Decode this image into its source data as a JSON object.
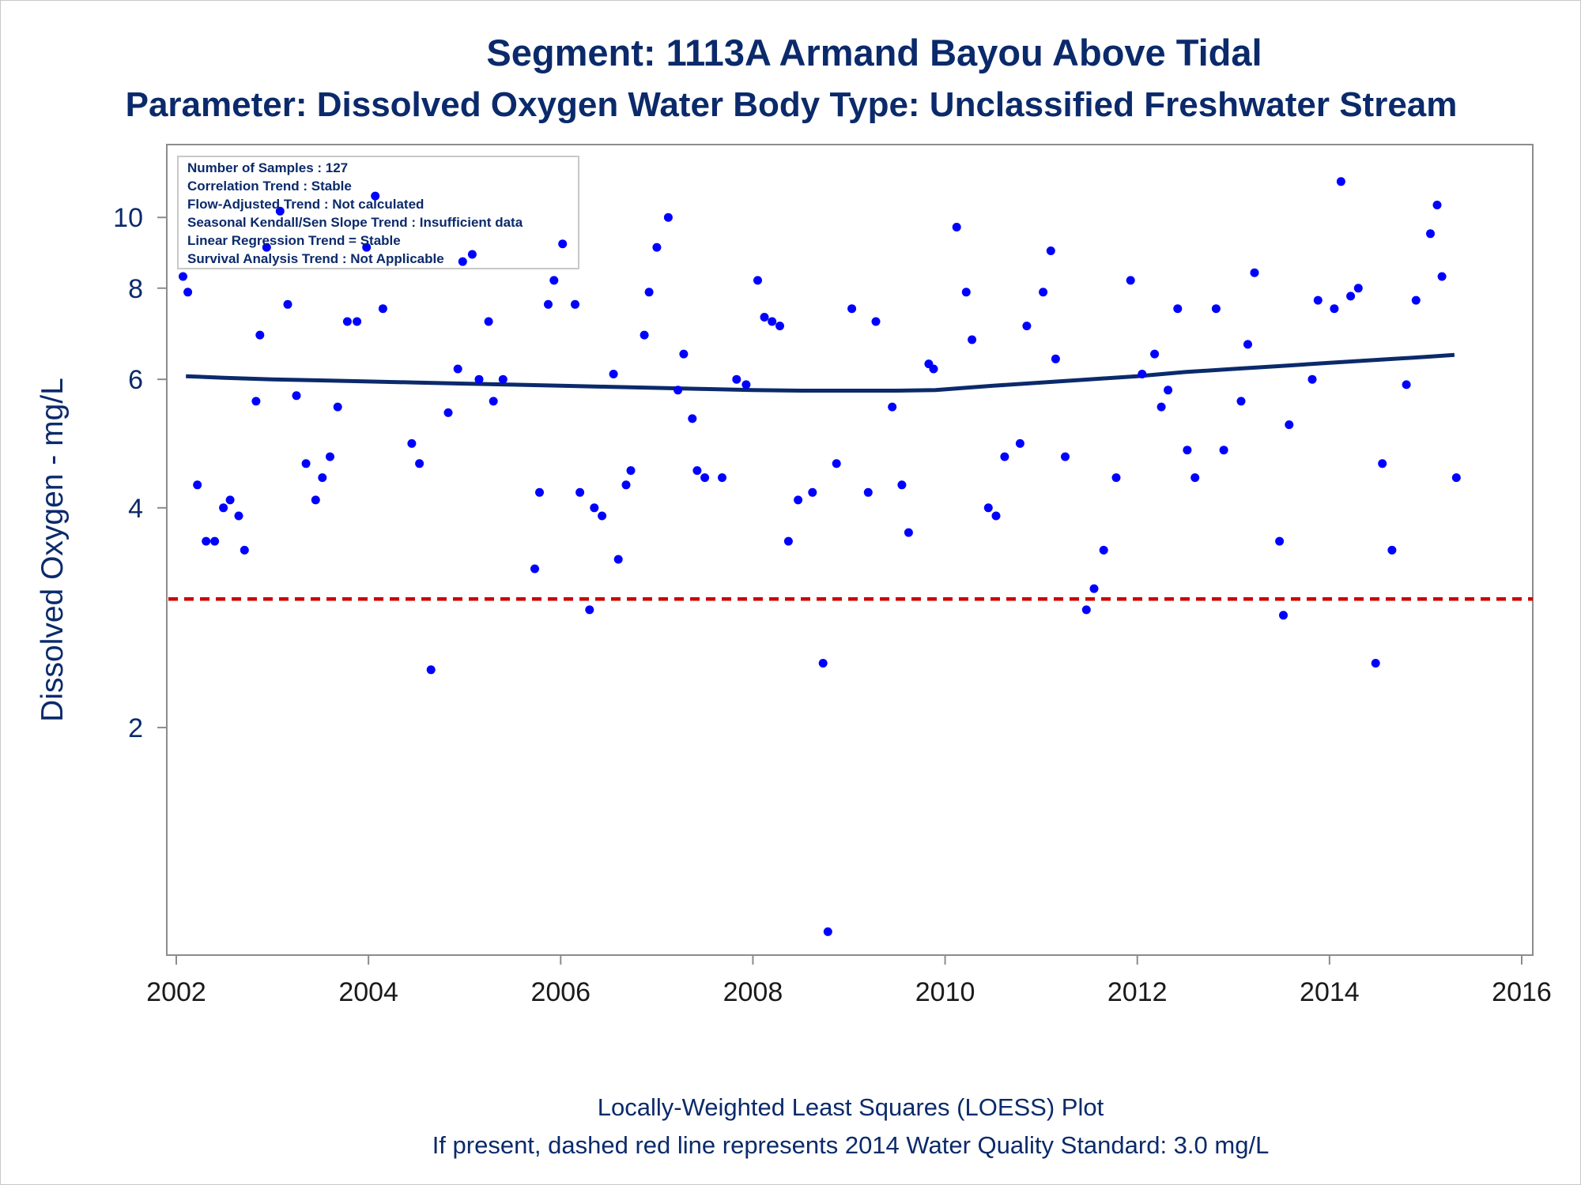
{
  "chart_data": {
    "type": "scatter",
    "title": "Segment: 1113A  Armand Bayou Above Tidal",
    "subtitle": "Parameter: Dissolved Oxygen   Water Body Type: Unclassified Freshwater Stream",
    "xlabel": "",
    "ylabel": "Dissolved Oxygen - mg/L",
    "y_scale": "log",
    "xlim": [
      2002,
      2016
    ],
    "ylim": [
      1.0,
      11.0
    ],
    "x_ticks": [
      "2002",
      "2004",
      "2006",
      "2008",
      "2010",
      "2012",
      "2014",
      "2016"
    ],
    "y_ticks": [
      "2",
      "4",
      "6",
      "8",
      "10"
    ],
    "grid": false,
    "point_color": "#0000ff",
    "loess_color": "#0b2a6b",
    "standard_color": "#cc0000",
    "standard_value": 3.0,
    "info_box": [
      "Number of Samples : 127",
      "Correlation Trend : Stable",
      "Flow-Adjusted Trend : Not calculated",
      "Seasonal Kendall/Sen Slope Trend : Insufficient data",
      "Linear Regression Trend = Stable",
      "Survival Analysis Trend : Not Applicable"
    ],
    "footnotes": [
      "Locally-Weighted Least Squares (LOESS) Plot",
      "If present, dashed red line represents 2014 Water Quality Standard: 3.0 mg/L"
    ],
    "series": [
      {
        "x": [
          2002.07,
          2002.12,
          2002.22,
          2002.31,
          2002.4,
          2002.49,
          2002.56,
          2002.65,
          2002.71,
          2002.83,
          2002.87,
          2002.94,
          2003.08,
          2003.16,
          2003.25,
          2003.35,
          2003.45,
          2003.52,
          2003.6,
          2003.68,
          2003.78,
          2003.88,
          2003.98,
          2004.07,
          2004.15,
          2004.45,
          2004.53,
          2004.65,
          2004.83,
          2004.93,
          2004.98,
          2005.08,
          2005.15,
          2005.25,
          2005.3,
          2005.4,
          2005.73,
          2005.78,
          2005.87,
          2005.93,
          2006.02,
          2006.15,
          2006.2,
          2006.3,
          2006.35,
          2006.43,
          2006.55,
          2006.6,
          2006.68,
          2006.73,
          2006.87,
          2006.92,
          2007.0,
          2007.12,
          2007.22,
          2007.28,
          2007.37,
          2007.42,
          2007.5,
          2007.68,
          2007.83,
          2007.93,
          2008.05,
          2008.12,
          2008.2,
          2008.28,
          2008.37,
          2008.47,
          2008.62,
          2008.73,
          2008.78,
          2008.87,
          2009.03,
          2009.2,
          2009.28,
          2009.45,
          2009.55,
          2009.62,
          2009.83,
          2009.88,
          2010.12,
          2010.22,
          2010.28,
          2010.45,
          2010.53,
          2010.62,
          2010.78,
          2010.85,
          2011.02,
          2011.1,
          2011.15,
          2011.25,
          2011.47,
          2011.55,
          2011.65,
          2011.78,
          2011.93,
          2012.05,
          2012.18,
          2012.25,
          2012.32,
          2012.42,
          2012.52,
          2012.6,
          2012.82,
          2012.9,
          2013.08,
          2013.15,
          2013.22,
          2013.48,
          2013.52,
          2013.58,
          2013.82,
          2013.88,
          2014.05,
          2014.12,
          2014.22,
          2014.3,
          2014.48,
          2014.55,
          2014.65,
          2014.8,
          2014.9,
          2015.05,
          2015.12,
          2015.17,
          2015.32
        ],
        "y": [
          8.3,
          7.9,
          4.3,
          3.6,
          3.6,
          4.0,
          4.1,
          3.9,
          3.5,
          5.6,
          6.9,
          9.1,
          10.2,
          7.6,
          5.7,
          4.6,
          4.1,
          4.4,
          4.7,
          5.5,
          7.2,
          7.2,
          9.1,
          10.7,
          7.5,
          4.9,
          4.6,
          2.4,
          5.4,
          6.2,
          8.7,
          8.9,
          6.0,
          7.2,
          5.6,
          6.0,
          3.3,
          4.2,
          7.6,
          8.2,
          9.2,
          7.6,
          4.2,
          2.9,
          4.0,
          3.9,
          6.1,
          3.4,
          4.3,
          4.5,
          6.9,
          7.9,
          9.1,
          10.0,
          5.8,
          6.5,
          5.3,
          4.5,
          4.4,
          4.4,
          6.0,
          5.9,
          8.2,
          7.3,
          7.2,
          7.1,
          3.6,
          4.1,
          4.2,
          2.45,
          1.05,
          4.6,
          7.5,
          4.2,
          7.2,
          5.5,
          4.3,
          3.7,
          6.3,
          6.2,
          9.7,
          7.9,
          6.8,
          4.0,
          3.9,
          4.7,
          4.9,
          7.1,
          7.9,
          9.0,
          6.4,
          4.7,
          2.9,
          3.1,
          3.5,
          4.4,
          8.2,
          6.1,
          6.5,
          5.5,
          5.8,
          7.5,
          4.8,
          4.4,
          7.5,
          4.8,
          5.6,
          6.7,
          8.4,
          3.6,
          2.85,
          5.2,
          6.0,
          7.7,
          7.5,
          11.2,
          7.8,
          8.0,
          2.45,
          4.6,
          3.5,
          5.9,
          7.7,
          9.5,
          10.4,
          8.3,
          4.4
        ]
      },
      {
        "name": "LOESS",
        "x": [
          2002.1,
          2002.5,
          2003.0,
          2003.5,
          2004.0,
          2004.5,
          2005.0,
          2005.5,
          2006.0,
          2006.5,
          2007.0,
          2007.5,
          2008.0,
          2008.5,
          2009.0,
          2009.5,
          2009.9,
          2010.2,
          2010.5,
          2011.0,
          2011.5,
          2012.0,
          2012.5,
          2013.0,
          2013.5,
          2014.0,
          2014.5,
          2015.0,
          2015.3
        ],
        "y": [
          6.06,
          6.03,
          6.0,
          5.98,
          5.96,
          5.94,
          5.92,
          5.9,
          5.88,
          5.86,
          5.84,
          5.82,
          5.8,
          5.79,
          5.79,
          5.79,
          5.8,
          5.84,
          5.88,
          5.94,
          6.0,
          6.06,
          6.14,
          6.2,
          6.26,
          6.32,
          6.38,
          6.44,
          6.48
        ]
      }
    ]
  }
}
